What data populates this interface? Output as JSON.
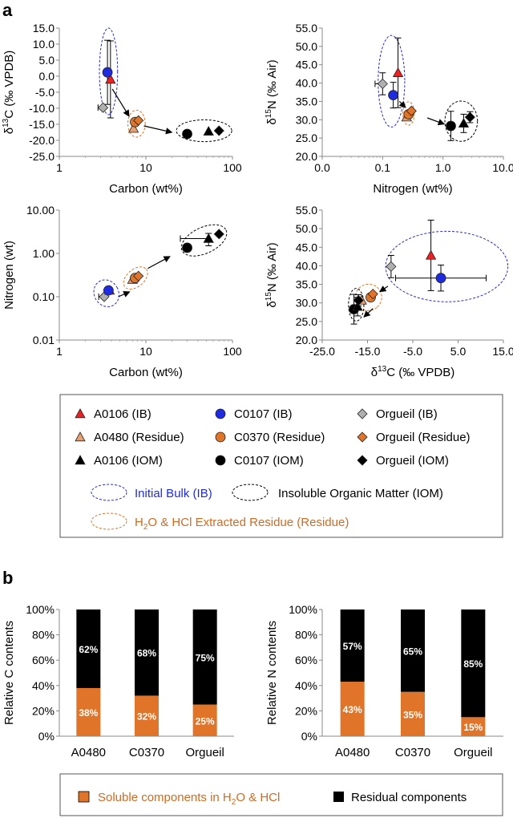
{
  "panel_labels": {
    "a": "a",
    "b": "b"
  },
  "colors": {
    "red": "#ee2020",
    "orange": "#e07428",
    "lightorange": "#e8a070",
    "blue": "#1f2be0",
    "gray": "#b0b0b0",
    "black": "#000000",
    "ib_ellipse": "#2b2bd0",
    "res_ellipse": "#e07428",
    "iom_ellipse": "#000000"
  },
  "legend": {
    "items": [
      {
        "label": "A0106 (IB)",
        "marker": "triangle",
        "color": "#ee2020"
      },
      {
        "label": "C0107 (IB)",
        "marker": "circle",
        "color": "#1f2be0"
      },
      {
        "label": "Orgueil (IB)",
        "marker": "diamond",
        "color": "#b0b0b0"
      },
      {
        "label": "A0480 (Residue)",
        "marker": "triangle",
        "color": "#e8a070"
      },
      {
        "label": "C0370 (Residue)",
        "marker": "circle",
        "color": "#e07428"
      },
      {
        "label": "Orgueil (Residue)",
        "marker": "diamond",
        "color": "#e07428"
      },
      {
        "label": "A0106 (IOM)",
        "marker": "triangle",
        "color": "#000000"
      },
      {
        "label": "C0107 (IOM)",
        "marker": "circle",
        "color": "#000000"
      },
      {
        "label": "Orgueil (IOM)",
        "marker": "diamond",
        "color": "#000000"
      }
    ],
    "ellipse_ib": "Initial Bulk (IB)",
    "ellipse_iom": "Insoluble Organic Matter (IOM)",
    "ellipse_res_pre": "H",
    "ellipse_res_sub": "2",
    "ellipse_res_post": "O & HCl Extracted Residue (Residue)"
  },
  "bar_legend": {
    "soluble_pre": "Soluble components in H",
    "soluble_sub": "2",
    "soluble_post": "O & HCl",
    "residual": "Residual components"
  },
  "chart_data": [
    {
      "type": "scatter",
      "id": "c1",
      "xlabel": "Carbon (wt%)",
      "ylabel": "δ13C (‰ VPDB)",
      "xscale": "log",
      "xlim": [
        1,
        100
      ],
      "ylim": [
        -25,
        15
      ],
      "xticks": [
        1,
        10,
        100
      ],
      "xticklabels": [
        "1",
        "10",
        "100"
      ],
      "yticks": [
        -25,
        -20,
        -15,
        -10,
        -5,
        0,
        5,
        10,
        15
      ],
      "yticklabels": [
        "-25.0",
        "-20.0",
        "-15.0",
        "-10.0",
        "-5.0",
        "0.0",
        "5.0",
        "10.0",
        "15.0"
      ],
      "points": [
        {
          "name": "A0106 (IB)",
          "x": 3.9,
          "y": -1.0,
          "marker": "triangle",
          "color": "#ee2020",
          "yerr": 12
        },
        {
          "name": "C0107 (IB)",
          "x": 3.6,
          "y": 1.2,
          "marker": "circle",
          "color": "#1f2be0",
          "yerr": 10
        },
        {
          "name": "Orgueil (IB)",
          "x": 3.2,
          "y": -9.8,
          "marker": "diamond",
          "color": "#b0b0b0",
          "xerr_left": 0.4
        },
        {
          "name": "A0480 (Residue)",
          "x": 7.2,
          "y": -16.3,
          "marker": "triangle",
          "color": "#e8a070"
        },
        {
          "name": "C0370 (Residue)",
          "x": 7.5,
          "y": -14.3,
          "marker": "circle",
          "color": "#e07428"
        },
        {
          "name": "Orgueil (Residue)",
          "x": 8.2,
          "y": -13.8,
          "marker": "diamond",
          "color": "#e07428"
        },
        {
          "name": "C0107 (IOM)",
          "x": 30,
          "y": -18.0,
          "marker": "circle",
          "color": "#000000"
        },
        {
          "name": "A0106 (IOM)",
          "x": 53,
          "y": -17.2,
          "marker": "triangle",
          "color": "#000000"
        },
        {
          "name": "Orgueil (IOM)",
          "x": 70,
          "y": -17.0,
          "marker": "diamond",
          "color": "#000000"
        }
      ],
      "ellipses": [
        {
          "type": "ib",
          "cx": 3.7,
          "cy": 1.5,
          "rx": 0.105,
          "ry": 13.5
        },
        {
          "type": "res",
          "cx": 7.8,
          "cy": -14.8,
          "rx": 0.1,
          "ry": 4.2
        },
        {
          "type": "iom",
          "cx": 47,
          "cy": -17.0,
          "rx": 0.32,
          "ry": 3.4
        }
      ],
      "arrows": [
        {
          "from": [
            4.1,
            -4
          ],
          "to": [
            6.4,
            -12.5
          ]
        },
        {
          "from": [
            9.5,
            -15.5
          ],
          "to": [
            20,
            -17.5
          ]
        }
      ]
    },
    {
      "type": "scatter",
      "id": "c2",
      "xlabel": "Nitrogen (wt%)",
      "ylabel": "δ15N (‰ Air)",
      "xscale": "log",
      "xlim": [
        0.01,
        10
      ],
      "ylim": [
        20,
        55
      ],
      "xticks": [
        0.01,
        0.1,
        1,
        10
      ],
      "xticklabels": [
        "0.0",
        "0.1",
        "1.0",
        "10.0"
      ],
      "yticks": [
        20,
        25,
        30,
        35,
        40,
        45,
        50,
        55
      ],
      "yticklabels": [
        "20.0",
        "25.0",
        "30.0",
        "35.0",
        "40.0",
        "45.0",
        "50.0",
        "55.0"
      ],
      "points": [
        {
          "name": "A0106 (IB)",
          "x": 0.18,
          "y": 42.8,
          "marker": "triangle",
          "color": "#ee2020",
          "yerr": 9.5
        },
        {
          "name": "C0107 (IB)",
          "x": 0.15,
          "y": 36.7,
          "marker": "circle",
          "color": "#1f2be0",
          "yerr": 3.5
        },
        {
          "name": "Orgueil (IB)",
          "x": 0.1,
          "y": 39.8,
          "marker": "diamond",
          "color": "#b0b0b0",
          "yerr": 3,
          "xerr_left": 0.025
        },
        {
          "name": "A0480 (Residue)",
          "x": 0.25,
          "y": 30.7,
          "marker": "triangle",
          "color": "#e8a070"
        },
        {
          "name": "C0370 (Residue)",
          "x": 0.27,
          "y": 31.5,
          "marker": "circle",
          "color": "#e07428"
        },
        {
          "name": "Orgueil (Residue)",
          "x": 0.3,
          "y": 32.4,
          "marker": "diamond",
          "color": "#e07428"
        },
        {
          "name": "C0107 (IOM)",
          "x": 1.35,
          "y": 28.3,
          "marker": "circle",
          "color": "#000000",
          "yerr": 4
        },
        {
          "name": "A0106 (IOM)",
          "x": 2.2,
          "y": 29.0,
          "marker": "triangle",
          "color": "#000000",
          "yerr": 2.5
        },
        {
          "name": "Orgueil (IOM)",
          "x": 2.8,
          "y": 30.7,
          "marker": "diamond",
          "color": "#000000",
          "yerr": 1.5
        }
      ],
      "ellipses": [
        {
          "type": "ib",
          "cx": 0.14,
          "cy": 40.5,
          "rx": 0.22,
          "ry": 12.5
        },
        {
          "type": "res",
          "cx": 0.27,
          "cy": 31.7,
          "rx": 0.095,
          "ry": 3.2
        },
        {
          "type": "iom",
          "cx": 2.0,
          "cy": 29.6,
          "rx": 0.27,
          "ry": 5.5
        }
      ],
      "arrows": [
        {
          "from": [
            0.19,
            35
          ],
          "to": [
            0.24,
            33.3
          ]
        },
        {
          "from": [
            0.55,
            30.5
          ],
          "to": [
            1.05,
            28.8
          ]
        }
      ]
    },
    {
      "type": "scatter",
      "id": "c3",
      "xlabel": "Carbon (wt%)",
      "ylabel": "Nitrogen (wt)",
      "xscale": "log",
      "yscale": "log",
      "xlim": [
        1,
        100
      ],
      "ylim": [
        0.01,
        10
      ],
      "xticks": [
        1,
        10,
        100
      ],
      "xticklabels": [
        "1",
        "10",
        "100"
      ],
      "yticks": [
        0.01,
        0.1,
        1,
        10
      ],
      "yticklabels": [
        "0.01",
        "0.10",
        "1.00",
        "10.00"
      ],
      "points": [
        {
          "name": "Orgueil (IB)",
          "x": 3.3,
          "y": 0.1,
          "marker": "diamond",
          "color": "#b0b0b0",
          "xerr_left": 0.45
        },
        {
          "name": "A0106 (IB)",
          "x": 3.8,
          "y": 0.14,
          "marker": "triangle",
          "color": "#ee2020"
        },
        {
          "name": "C0107 (IB)",
          "x": 3.7,
          "y": 0.14,
          "marker": "circle",
          "color": "#1f2be0"
        },
        {
          "name": "A0480 (Residue)",
          "x": 7.0,
          "y": 0.25,
          "marker": "triangle",
          "color": "#e8a070"
        },
        {
          "name": "C0370 (Residue)",
          "x": 7.5,
          "y": 0.27,
          "marker": "circle",
          "color": "#e07428"
        },
        {
          "name": "Orgueil (Residue)",
          "x": 8.2,
          "y": 0.3,
          "marker": "diamond",
          "color": "#e07428"
        },
        {
          "name": "C0107 (IOM)",
          "x": 30,
          "y": 1.35,
          "marker": "circle",
          "color": "#000000"
        },
        {
          "name": "A0106 (IOM)",
          "x": 53,
          "y": 2.2,
          "marker": "triangle",
          "color": "#000000",
          "yerr": 0.7,
          "xerr_left": 28
        },
        {
          "name": "Orgueil (IOM)",
          "x": 70,
          "y": 2.8,
          "marker": "diamond",
          "color": "#000000"
        }
      ],
      "ellipses": [
        {
          "type": "ib",
          "cx": 3.5,
          "cy": 0.12,
          "rx": 0.14,
          "ry": 0.32,
          "rot": -30
        },
        {
          "type": "res",
          "cx": 7.6,
          "cy": 0.27,
          "rx": 0.16,
          "ry": 0.2,
          "rot": -40
        },
        {
          "type": "iom",
          "cx": 47,
          "cy": 2.0,
          "rx": 0.28,
          "ry": 0.3,
          "rot": -25
        }
      ],
      "arrows": [
        {
          "from": [
            4.8,
            0.1
          ],
          "to": [
            6.5,
            0.13
          ]
        },
        {
          "from": [
            10.5,
            0.45
          ],
          "to": [
            19,
            0.85
          ]
        }
      ]
    },
    {
      "type": "scatter",
      "id": "c4",
      "xlabel": "δ13C (‰ VPDB)",
      "ylabel": "δ15N (‰ Air)",
      "xlim": [
        -25,
        15
      ],
      "ylim": [
        20,
        55
      ],
      "xticks": [
        -25,
        -15,
        -5,
        5,
        15
      ],
      "xticklabels": [
        "-25.0",
        "-15.0",
        "-5.0",
        "5.0",
        "15.0"
      ],
      "yticks": [
        20,
        25,
        30,
        35,
        40,
        45,
        50,
        55
      ],
      "yticklabels": [
        "20.0",
        "25.0",
        "30.0",
        "35.0",
        "40.0",
        "45.0",
        "50.0",
        "55.0"
      ],
      "points": [
        {
          "name": "A0106 (IB)",
          "x": -1.0,
          "y": 42.8,
          "marker": "triangle",
          "color": "#ee2020",
          "yerr": 9.5
        },
        {
          "name": "C0107 (IB)",
          "x": 1.2,
          "y": 36.7,
          "marker": "circle",
          "color": "#1f2be0",
          "yerr": 3.5,
          "xerr": 10
        },
        {
          "name": "Orgueil (IB)",
          "x": -9.8,
          "y": 39.8,
          "marker": "diamond",
          "color": "#b0b0b0",
          "yerr": 3
        },
        {
          "name": "A0480 (Residue)",
          "x": -16.3,
          "y": 30.7,
          "marker": "triangle",
          "color": "#e8a070"
        },
        {
          "name": "C0370 (Residue)",
          "x": -14.3,
          "y": 31.5,
          "marker": "circle",
          "color": "#e07428"
        },
        {
          "name": "Orgueil (Residue)",
          "x": -13.8,
          "y": 32.4,
          "marker": "diamond",
          "color": "#e07428"
        },
        {
          "name": "C0107 (IOM)",
          "x": -18.0,
          "y": 28.3,
          "marker": "circle",
          "color": "#000000",
          "yerr": 4
        },
        {
          "name": "A0106 (IOM)",
          "x": -17.2,
          "y": 29.0,
          "marker": "triangle",
          "color": "#000000",
          "yerr": 2.5
        },
        {
          "name": "Orgueil (IOM)",
          "x": -17.0,
          "y": 30.7,
          "marker": "diamond",
          "color": "#000000",
          "yerr": 1.5
        }
      ],
      "ellipses": [
        {
          "type": "ib",
          "cx": 2.5,
          "cy": 39.8,
          "rx": 13.5,
          "ry": 9.5
        },
        {
          "type": "res",
          "cx": -14.8,
          "cy": 31.5,
          "rx": 2.9,
          "ry": 3.6,
          "rot": 50
        },
        {
          "type": "iom",
          "cx": -17.5,
          "cy": 29.5,
          "rx": 1.7,
          "ry": 4.4
        }
      ],
      "arrows": [
        {
          "from": [
            -10.5,
            34.5
          ],
          "to": [
            -12.3,
            33.0
          ]
        },
        {
          "from": [
            -13.8,
            28.5
          ],
          "to": [
            -15.8,
            26.2
          ]
        }
      ]
    },
    {
      "type": "bar",
      "id": "b1",
      "stacked": true,
      "ylabel": "Relative C contents",
      "categories": [
        "A0480",
        "C0370",
        "Orgueil"
      ],
      "ylim": [
        0,
        100
      ],
      "yticks": [
        0,
        20,
        40,
        60,
        80,
        100
      ],
      "yticklabels": [
        "0%",
        "20%",
        "40%",
        "60%",
        "80%",
        "100%"
      ],
      "series": [
        {
          "name": "Soluble components in H2O & HCl",
          "color": "#e07428",
          "values": [
            38,
            32,
            25
          ],
          "labels": [
            "38%",
            "32%",
            "25%"
          ]
        },
        {
          "name": "Residual components",
          "color": "#000000",
          "values": [
            62,
            68,
            75
          ],
          "labels": [
            "62%",
            "68%",
            "75%"
          ]
        }
      ]
    },
    {
      "type": "bar",
      "id": "b2",
      "stacked": true,
      "ylabel": "Relative N contents",
      "categories": [
        "A0480",
        "C0370",
        "Orgueil"
      ],
      "ylim": [
        0,
        100
      ],
      "yticks": [
        0,
        20,
        40,
        60,
        80,
        100
      ],
      "yticklabels": [
        "0%",
        "20%",
        "40%",
        "60%",
        "80%",
        "100%"
      ],
      "series": [
        {
          "name": "Soluble components in H2O & HCl",
          "color": "#e07428",
          "values": [
            43,
            35,
            15
          ],
          "labels": [
            "43%",
            "35%",
            "15%"
          ]
        },
        {
          "name": "Residual components",
          "color": "#000000",
          "values": [
            57,
            65,
            85
          ],
          "labels": [
            "57%",
            "65%",
            "85%"
          ]
        }
      ]
    }
  ]
}
